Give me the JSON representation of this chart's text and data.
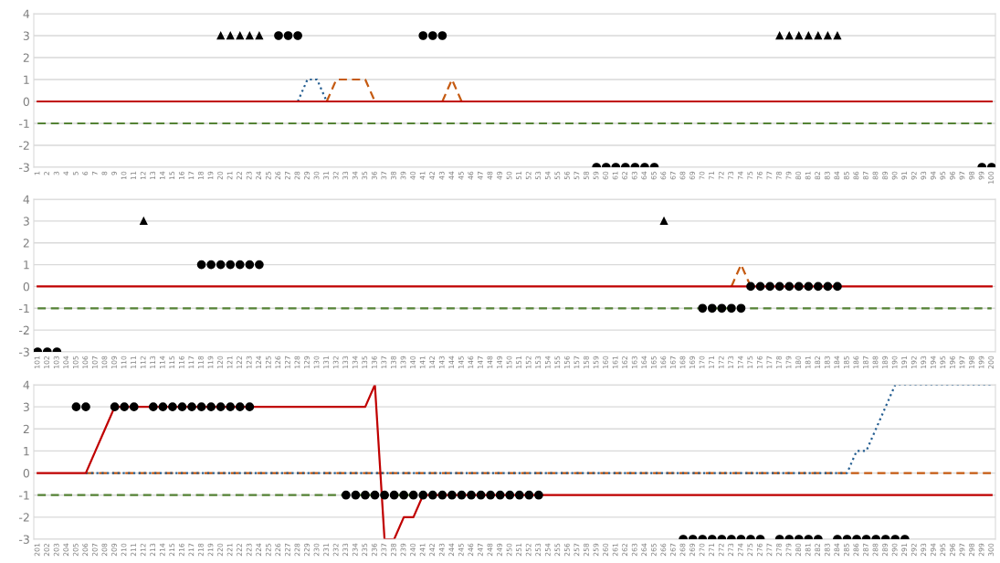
{
  "chart_data": [
    {
      "type": "line",
      "ylim": [
        -3,
        4
      ],
      "yticks": [
        -3,
        -2,
        -1,
        0,
        1,
        2,
        3,
        4
      ],
      "grid": "y",
      "categories": [
        "1",
        "2",
        "3",
        "4",
        "5",
        "6",
        "7",
        "8",
        "9",
        "10",
        "11",
        "12",
        "13",
        "14",
        "15",
        "16",
        "17",
        "18",
        "19",
        "20",
        "21",
        "22",
        "23",
        "24",
        "25",
        "26",
        "27",
        "28",
        "29",
        "30",
        "31",
        "32",
        "33",
        "34",
        "35",
        "36",
        "37",
        "38",
        "39",
        "40",
        "41",
        "42",
        "43",
        "44",
        "45",
        "46",
        "47",
        "48",
        "49",
        "50",
        "51",
        "52",
        "53",
        "54",
        "55",
        "56",
        "57",
        "58",
        "59",
        "60",
        "61",
        "62",
        "63",
        "64",
        "65",
        "66",
        "67",
        "68",
        "69",
        "70",
        "71",
        "72",
        "73",
        "74",
        "75",
        "76",
        "77",
        "78",
        "79",
        "80",
        "81",
        "82",
        "83",
        "84",
        "85",
        "86",
        "87",
        "88",
        "89",
        "90",
        "91",
        "92",
        "93",
        "94",
        "95",
        "96",
        "97",
        "98",
        "99",
        "100"
      ],
      "series": [
        {
          "color": "#548235",
          "line_style": "dashed",
          "marker": "none",
          "values": [
            -1,
            -1,
            -1,
            -1,
            -1,
            -1,
            -1,
            -1,
            -1,
            -1,
            -1,
            -1,
            -1,
            -1,
            -1,
            -1,
            -1,
            -1,
            -1,
            -1,
            -1,
            -1,
            -1,
            -1,
            -1,
            -1,
            -1,
            -1,
            -1,
            -1,
            -1,
            -1,
            -1,
            -1,
            -1,
            -1,
            -1,
            -1,
            -1,
            -1,
            -1,
            -1,
            -1,
            -1,
            -1,
            -1,
            -1,
            -1,
            -1,
            -1,
            -1,
            -1,
            -1,
            -1,
            -1,
            -1,
            -1,
            -1,
            -1,
            -1,
            -1,
            -1,
            -1,
            -1,
            -1,
            -1,
            -1,
            -1,
            -1,
            -1,
            -1,
            -1,
            -1,
            -1,
            -1,
            -1,
            -1,
            -1,
            -1,
            -1,
            -1,
            -1,
            -1,
            -1,
            -1,
            -1,
            -1,
            -1,
            -1,
            -1,
            -1,
            -1,
            -1,
            -1,
            -1,
            -1,
            -1,
            -1,
            -1,
            -1
          ]
        },
        {
          "color": "#255e91",
          "line_style": "dotted",
          "marker": "none",
          "values": [
            null,
            null,
            null,
            null,
            null,
            null,
            null,
            null,
            null,
            null,
            null,
            null,
            null,
            null,
            null,
            null,
            null,
            null,
            null,
            null,
            null,
            null,
            null,
            null,
            null,
            null,
            null,
            0,
            1,
            1,
            0,
            null,
            null,
            null,
            null,
            null,
            null,
            null,
            null,
            null,
            null,
            null,
            null,
            null,
            null,
            null,
            null,
            null,
            null,
            null,
            null,
            null,
            null,
            null,
            null,
            null,
            null,
            null,
            null,
            null,
            null,
            null,
            null,
            null,
            null,
            null,
            null,
            null,
            null,
            null,
            null,
            null,
            null,
            null,
            null,
            null,
            null,
            null,
            null,
            null,
            null,
            null,
            null,
            null,
            null,
            null,
            null,
            null,
            null,
            null,
            null,
            null,
            null,
            null,
            null,
            null,
            null,
            null,
            null,
            null
          ]
        },
        {
          "color": "#c55a11",
          "line_style": "dashed",
          "marker": "none",
          "values": [
            null,
            null,
            null,
            null,
            null,
            null,
            null,
            null,
            null,
            null,
            null,
            null,
            null,
            null,
            null,
            null,
            null,
            null,
            null,
            null,
            null,
            null,
            null,
            null,
            null,
            null,
            null,
            null,
            null,
            null,
            0,
            1,
            1,
            1,
            1,
            0,
            null,
            null,
            null,
            null,
            null,
            null,
            0,
            1,
            0,
            null,
            null,
            null,
            null,
            null,
            null,
            null,
            null,
            null,
            null,
            null,
            null,
            null,
            null,
            null,
            null,
            null,
            null,
            null,
            null,
            null,
            null,
            null,
            null,
            null,
            null,
            null,
            null,
            null,
            null,
            null,
            null,
            null,
            null,
            null,
            null,
            null,
            null,
            null,
            null,
            null,
            null,
            null,
            null,
            null,
            null,
            null,
            null,
            null,
            null,
            null,
            null,
            null,
            null,
            null
          ]
        },
        {
          "color": "#c00000",
          "line_style": "solid",
          "marker": "none",
          "values": [
            0,
            0,
            0,
            0,
            0,
            0,
            0,
            0,
            0,
            0,
            0,
            0,
            0,
            0,
            0,
            0,
            0,
            0,
            0,
            0,
            0,
            0,
            0,
            0,
            0,
            0,
            0,
            0,
            0,
            0,
            0,
            0,
            0,
            0,
            0,
            0,
            0,
            0,
            0,
            0,
            0,
            0,
            0,
            0,
            0,
            0,
            0,
            0,
            0,
            0,
            0,
            0,
            0,
            0,
            0,
            0,
            0,
            0,
            0,
            0,
            0,
            0,
            0,
            0,
            0,
            0,
            0,
            0,
            0,
            0,
            0,
            0,
            0,
            0,
            0,
            0,
            0,
            0,
            0,
            0,
            0,
            0,
            0,
            0,
            0,
            0,
            0,
            0,
            0,
            0,
            0,
            0,
            0,
            0,
            0,
            0,
            0,
            0,
            0,
            0
          ]
        },
        {
          "type": "scatter",
          "color": "#000000",
          "marker": "circle",
          "values": [
            null,
            null,
            null,
            null,
            null,
            null,
            null,
            null,
            null,
            null,
            null,
            null,
            null,
            null,
            null,
            null,
            null,
            null,
            null,
            null,
            null,
            null,
            null,
            null,
            null,
            3,
            3,
            3,
            null,
            null,
            null,
            null,
            null,
            null,
            null,
            null,
            null,
            null,
            null,
            null,
            3,
            3,
            3,
            null,
            null,
            null,
            null,
            null,
            null,
            null,
            null,
            null,
            null,
            null,
            null,
            null,
            null,
            null,
            -3,
            -3,
            -3,
            -3,
            -3,
            -3,
            -3,
            null,
            null,
            null,
            null,
            null,
            null,
            null,
            null,
            null,
            null,
            null,
            null,
            null,
            null,
            null,
            null,
            null,
            null,
            null,
            null,
            null,
            null,
            null,
            null,
            null,
            null,
            null,
            null,
            null,
            null,
            null,
            null,
            null,
            -3,
            -3
          ]
        },
        {
          "type": "scatter",
          "color": "#000000",
          "marker": "triangle",
          "values": [
            null,
            null,
            null,
            null,
            null,
            null,
            null,
            null,
            null,
            null,
            null,
            null,
            null,
            null,
            null,
            null,
            null,
            null,
            null,
            3,
            3,
            3,
            3,
            3,
            null,
            null,
            null,
            null,
            null,
            null,
            null,
            null,
            null,
            null,
            null,
            null,
            null,
            null,
            null,
            null,
            null,
            null,
            null,
            null,
            null,
            null,
            null,
            null,
            null,
            null,
            null,
            null,
            null,
            null,
            null,
            null,
            null,
            null,
            null,
            null,
            null,
            null,
            null,
            null,
            null,
            null,
            null,
            null,
            null,
            null,
            null,
            null,
            null,
            null,
            null,
            null,
            null,
            3,
            3,
            3,
            3,
            3,
            3,
            3,
            null,
            null,
            null,
            null,
            null,
            null,
            null,
            null,
            null,
            null,
            null,
            null,
            null,
            null,
            null,
            null
          ]
        }
      ]
    },
    {
      "type": "line",
      "ylim": [
        -3,
        4
      ],
      "yticks": [
        -3,
        -2,
        -1,
        0,
        1,
        2,
        3,
        4
      ],
      "grid": "y",
      "categories": [
        "101",
        "102",
        "103",
        "104",
        "105",
        "106",
        "107",
        "108",
        "109",
        "110",
        "111",
        "112",
        "113",
        "114",
        "115",
        "116",
        "117",
        "118",
        "119",
        "120",
        "121",
        "122",
        "123",
        "124",
        "125",
        "126",
        "127",
        "128",
        "129",
        "130",
        "131",
        "132",
        "133",
        "134",
        "135",
        "136",
        "137",
        "138",
        "139",
        "140",
        "141",
        "142",
        "143",
        "144",
        "145",
        "146",
        "147",
        "148",
        "149",
        "150",
        "151",
        "152",
        "153",
        "154",
        "155",
        "156",
        "157",
        "158",
        "159",
        "160",
        "161",
        "162",
        "163",
        "164",
        "165",
        "166",
        "167",
        "168",
        "169",
        "170",
        "171",
        "172",
        "173",
        "174",
        "175",
        "176",
        "177",
        "178",
        "179",
        "180",
        "181",
        "182",
        "183",
        "184",
        "185",
        "186",
        "187",
        "188",
        "189",
        "190",
        "191",
        "192",
        "193",
        "194",
        "195",
        "196",
        "197",
        "198",
        "199",
        "200"
      ],
      "series": [
        {
          "color": "#548235",
          "line_style": "dashed",
          "marker": "none",
          "values": [
            -1,
            -1,
            -1,
            -1,
            -1,
            -1,
            -1,
            -1,
            -1,
            -1,
            -1,
            -1,
            -1,
            -1,
            -1,
            -1,
            -1,
            -1,
            -1,
            -1,
            -1,
            -1,
            -1,
            -1,
            -1,
            -1,
            -1,
            -1,
            -1,
            -1,
            -1,
            -1,
            -1,
            -1,
            -1,
            -1,
            -1,
            -1,
            -1,
            -1,
            -1,
            -1,
            -1,
            -1,
            -1,
            -1,
            -1,
            -1,
            -1,
            -1,
            -1,
            -1,
            -1,
            -1,
            -1,
            -1,
            -1,
            -1,
            -1,
            -1,
            -1,
            -1,
            -1,
            -1,
            -1,
            -1,
            -1,
            -1,
            -1,
            -1,
            -1,
            -1,
            -1,
            -1,
            -1,
            -1,
            -1,
            -1,
            -1,
            -1,
            -1,
            -1,
            -1,
            -1,
            -1,
            -1,
            -1,
            -1,
            -1,
            -1,
            -1,
            -1,
            -1,
            -1,
            -1,
            -1,
            -1,
            -1,
            -1,
            -1
          ]
        },
        {
          "color": "#c55a11",
          "line_style": "dashed",
          "marker": "none",
          "values": [
            null,
            null,
            null,
            null,
            null,
            null,
            null,
            null,
            null,
            null,
            null,
            null,
            null,
            null,
            null,
            null,
            null,
            null,
            null,
            null,
            null,
            null,
            null,
            null,
            null,
            null,
            null,
            null,
            null,
            null,
            null,
            null,
            null,
            null,
            null,
            null,
            null,
            null,
            null,
            null,
            null,
            null,
            null,
            null,
            null,
            null,
            null,
            null,
            null,
            null,
            null,
            null,
            null,
            null,
            null,
            null,
            null,
            null,
            null,
            null,
            null,
            null,
            null,
            null,
            null,
            null,
            null,
            null,
            null,
            null,
            null,
            null,
            0,
            1,
            0,
            null,
            null,
            null,
            null,
            null,
            null,
            null,
            null,
            null,
            null,
            null,
            null,
            null,
            null,
            null,
            null,
            null,
            null,
            null,
            null,
            null,
            null,
            null,
            null,
            null
          ]
        },
        {
          "color": "#c00000",
          "line_style": "solid",
          "marker": "none",
          "values": [
            0,
            0,
            0,
            0,
            0,
            0,
            0,
            0,
            0,
            0,
            0,
            0,
            0,
            0,
            0,
            0,
            0,
            0,
            0,
            0,
            0,
            0,
            0,
            0,
            0,
            0,
            0,
            0,
            0,
            0,
            0,
            0,
            0,
            0,
            0,
            0,
            0,
            0,
            0,
            0,
            0,
            0,
            0,
            0,
            0,
            0,
            0,
            0,
            0,
            0,
            0,
            0,
            0,
            0,
            0,
            0,
            0,
            0,
            0,
            0,
            0,
            0,
            0,
            0,
            0,
            0,
            0,
            0,
            0,
            0,
            0,
            0,
            0,
            0,
            0,
            0,
            0,
            0,
            0,
            0,
            0,
            0,
            0,
            0,
            0,
            0,
            0,
            0,
            0,
            0,
            0,
            0,
            0,
            0,
            0,
            0,
            0,
            0,
            0,
            0
          ]
        },
        {
          "type": "scatter",
          "color": "#000000",
          "marker": "circle",
          "values": [
            -3,
            -3,
            -3,
            null,
            null,
            null,
            null,
            null,
            null,
            null,
            null,
            null,
            null,
            null,
            null,
            null,
            null,
            1,
            1,
            1,
            1,
            1,
            1,
            1,
            null,
            null,
            null,
            null,
            null,
            null,
            null,
            null,
            null,
            null,
            null,
            null,
            null,
            null,
            null,
            null,
            null,
            null,
            null,
            null,
            null,
            null,
            null,
            null,
            null,
            null,
            null,
            null,
            null,
            null,
            null,
            null,
            null,
            null,
            null,
            null,
            null,
            null,
            null,
            null,
            null,
            null,
            null,
            null,
            null,
            -1,
            -1,
            -1,
            -1,
            -1,
            0,
            0,
            0,
            0,
            0,
            0,
            0,
            0,
            0,
            0,
            null,
            null,
            null,
            null,
            null,
            null,
            null,
            null,
            null,
            null,
            null,
            null,
            null,
            null,
            null,
            null
          ]
        },
        {
          "type": "scatter",
          "color": "#000000",
          "marker": "triangle",
          "values": [
            null,
            null,
            null,
            null,
            null,
            null,
            null,
            null,
            null,
            null,
            null,
            3,
            null,
            null,
            null,
            null,
            null,
            null,
            null,
            null,
            null,
            null,
            null,
            null,
            null,
            null,
            null,
            null,
            null,
            null,
            null,
            null,
            null,
            null,
            null,
            null,
            null,
            null,
            null,
            null,
            null,
            null,
            null,
            null,
            null,
            null,
            null,
            null,
            null,
            null,
            null,
            null,
            null,
            null,
            null,
            null,
            null,
            null,
            null,
            null,
            null,
            null,
            null,
            null,
            null,
            3,
            null,
            null,
            null,
            null,
            null,
            null,
            null,
            null,
            null,
            null,
            null,
            null,
            null,
            null,
            null,
            null,
            null,
            null,
            null,
            null,
            null,
            null,
            null,
            null,
            null,
            null,
            null,
            null,
            null,
            null,
            null,
            null,
            null,
            null
          ]
        }
      ]
    },
    {
      "type": "line",
      "ylim": [
        -3,
        4
      ],
      "yticks": [
        -3,
        -2,
        -1,
        0,
        1,
        2,
        3,
        4
      ],
      "grid": "y",
      "categories": [
        "201",
        "202",
        "203",
        "204",
        "205",
        "206",
        "207",
        "208",
        "209",
        "210",
        "211",
        "212",
        "213",
        "214",
        "215",
        "216",
        "217",
        "218",
        "219",
        "220",
        "221",
        "222",
        "223",
        "224",
        "225",
        "226",
        "227",
        "228",
        "229",
        "230",
        "231",
        "232",
        "233",
        "234",
        "235",
        "236",
        "237",
        "238",
        "239",
        "240",
        "241",
        "242",
        "243",
        "244",
        "245",
        "246",
        "247",
        "248",
        "249",
        "250",
        "251",
        "252",
        "253",
        "254",
        "255",
        "256",
        "257",
        "258",
        "259",
        "260",
        "261",
        "262",
        "263",
        "264",
        "265",
        "266",
        "267",
        "268",
        "269",
        "270",
        "271",
        "272",
        "273",
        "274",
        "275",
        "276",
        "277",
        "278",
        "279",
        "280",
        "281",
        "282",
        "283",
        "284",
        "285",
        "286",
        "287",
        "288",
        "289",
        "290",
        "291",
        "292",
        "293",
        "294",
        "295",
        "296",
        "297",
        "298",
        "299",
        "300"
      ],
      "series": [
        {
          "color": "#548235",
          "line_style": "dashed",
          "marker": "none",
          "values": [
            -1,
            -1,
            -1,
            -1,
            -1,
            -1,
            -1,
            -1,
            -1,
            -1,
            -1,
            -1,
            -1,
            -1,
            -1,
            -1,
            -1,
            -1,
            -1,
            -1,
            -1,
            -1,
            -1,
            -1,
            -1,
            -1,
            -1,
            -1,
            -1,
            -1,
            -1,
            -1,
            -1,
            -1,
            -1,
            -1,
            -1,
            -1,
            -1,
            -1,
            -1,
            null,
            null,
            null,
            null,
            null,
            null,
            null,
            null,
            null,
            null,
            null,
            null,
            null,
            null,
            null,
            null,
            null,
            null,
            null,
            null,
            null,
            null,
            null,
            null,
            null,
            null,
            null,
            null,
            null,
            null,
            null,
            null,
            null,
            null,
            null,
            null,
            null,
            null,
            null,
            null,
            null,
            null,
            null,
            null,
            null,
            null,
            null,
            null,
            null,
            null,
            null,
            null,
            null,
            null,
            null,
            null,
            null,
            null,
            null
          ]
        },
        {
          "color": "#c55a11",
          "line_style": "dashed",
          "marker": "none",
          "values": [
            null,
            null,
            null,
            null,
            null,
            0,
            0,
            0,
            0,
            0,
            0,
            0,
            0,
            0,
            0,
            0,
            0,
            0,
            0,
            0,
            0,
            0,
            0,
            0,
            0,
            0,
            0,
            0,
            0,
            0,
            0,
            0,
            0,
            0,
            0,
            0,
            0,
            0,
            0,
            0,
            0,
            0,
            0,
            0,
            0,
            0,
            0,
            0,
            0,
            0,
            0,
            0,
            0,
            0,
            0,
            0,
            0,
            0,
            0,
            0,
            0,
            0,
            0,
            0,
            0,
            0,
            0,
            0,
            0,
            0,
            0,
            0,
            0,
            0,
            0,
            0,
            0,
            0,
            0,
            0,
            0,
            0,
            0,
            0,
            0,
            0,
            0,
            0,
            0,
            0,
            0,
            0,
            0,
            0,
            0,
            0,
            0,
            0,
            0,
            0
          ]
        },
        {
          "color": "#255e91",
          "line_style": "dotted",
          "marker": "none",
          "values": [
            null,
            null,
            null,
            null,
            null,
            0,
            0,
            0,
            0,
            0,
            0,
            0,
            0,
            0,
            0,
            0,
            0,
            0,
            0,
            0,
            0,
            0,
            0,
            0,
            0,
            0,
            0,
            0,
            0,
            0,
            0,
            0,
            0,
            0,
            0,
            0,
            0,
            0,
            0,
            0,
            0,
            0,
            0,
            0,
            0,
            0,
            0,
            0,
            0,
            0,
            0,
            0,
            0,
            0,
            0,
            0,
            0,
            0,
            0,
            0,
            0,
            0,
            0,
            0,
            0,
            0,
            0,
            0,
            0,
            0,
            0,
            0,
            0,
            0,
            0,
            0,
            0,
            0,
            0,
            0,
            0,
            0,
            0,
            0,
            0,
            1,
            1,
            2,
            3,
            4,
            4,
            4,
            4,
            4,
            4,
            4,
            4,
            4,
            4,
            4
          ]
        },
        {
          "color": "#c00000",
          "line_style": "solid",
          "marker": "none",
          "values": [
            0,
            0,
            0,
            0,
            0,
            0,
            1,
            2,
            3,
            3,
            3,
            3,
            3,
            3,
            3,
            3,
            3,
            3,
            3,
            3,
            3,
            3,
            3,
            3,
            3,
            3,
            3,
            3,
            3,
            3,
            3,
            3,
            3,
            3,
            3,
            4,
            -3,
            -3,
            -2,
            -2,
            -1,
            -1,
            -1,
            -1,
            -1,
            -1,
            -1,
            -1,
            -1,
            -1,
            -1,
            -1,
            -1,
            -1,
            -1,
            -1,
            -1,
            -1,
            -1,
            -1,
            -1,
            -1,
            -1,
            -1,
            -1,
            -1,
            -1,
            -1,
            -1,
            -1,
            -1,
            -1,
            -1,
            -1,
            -1,
            -1,
            -1,
            -1,
            -1,
            -1,
            -1,
            -1,
            -1,
            -1,
            -1,
            -1,
            -1,
            -1,
            -1,
            -1,
            -1,
            -1,
            -1,
            -1,
            -1,
            -1,
            -1,
            -1,
            -1,
            -1
          ]
        },
        {
          "type": "scatter",
          "color": "#000000",
          "marker": "circle",
          "values": [
            null,
            null,
            null,
            null,
            3,
            3,
            null,
            null,
            3,
            3,
            3,
            null,
            3,
            3,
            3,
            3,
            3,
            3,
            3,
            3,
            3,
            3,
            3,
            null,
            null,
            null,
            null,
            null,
            null,
            null,
            null,
            null,
            -1,
            -1,
            -1,
            -1,
            -1,
            -1,
            -1,
            -1,
            -1,
            -1,
            -1,
            -1,
            -1,
            -1,
            -1,
            -1,
            -1,
            -1,
            -1,
            -1,
            -1,
            null,
            null,
            null,
            null,
            null,
            null,
            null,
            null,
            null,
            null,
            null,
            null,
            null,
            null,
            -3,
            -3,
            -3,
            -3,
            -3,
            -3,
            -3,
            -3,
            -3,
            null,
            -3,
            -3,
            -3,
            -3,
            -3,
            null,
            -3,
            -3,
            -3,
            -3,
            -3,
            -3,
            -3,
            -3,
            null,
            null,
            null,
            null,
            null,
            null,
            null,
            null,
            null
          ]
        }
      ]
    }
  ]
}
